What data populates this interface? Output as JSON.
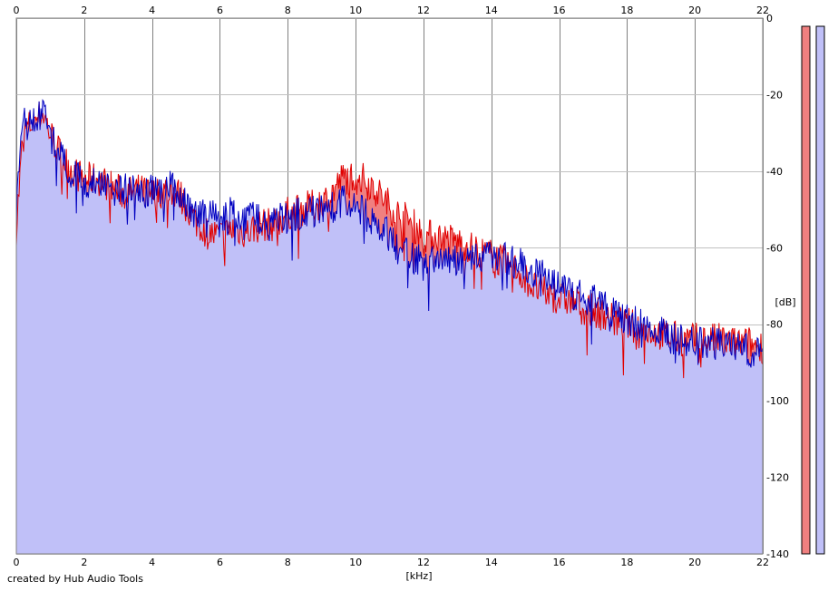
{
  "chart_data": {
    "type": "area",
    "xlabel": "[kHz]",
    "ylabel": "[dB]",
    "xlim": [
      0,
      22
    ],
    "ylim": [
      -140,
      0
    ],
    "x_ticks": [
      0,
      2,
      4,
      6,
      8,
      10,
      12,
      14,
      16,
      18,
      20,
      22
    ],
    "y_ticks": [
      0,
      -20,
      -40,
      -60,
      -80,
      -100,
      -120,
      -140
    ],
    "grid": true,
    "legend": "right-side channel bars",
    "series": [
      {
        "color": "#e00000",
        "fill": "#f08080",
        "x": [
          0,
          0.2,
          0.4,
          0.6,
          0.8,
          1.0,
          1.2,
          1.4,
          1.6,
          1.8,
          2.0,
          2.4,
          2.8,
          3.2,
          3.6,
          4.0,
          4.4,
          4.8,
          5.2,
          5.6,
          6.0,
          6.4,
          6.8,
          7.2,
          7.6,
          8.0,
          8.4,
          8.8,
          9.2,
          9.6,
          10.0,
          10.4,
          10.8,
          11.2,
          11.6,
          12.0,
          12.4,
          12.8,
          13.2,
          13.6,
          14.0,
          14.4,
          14.8,
          15.2,
          15.6,
          16.0,
          16.4,
          16.8,
          17.2,
          17.6,
          18.0,
          18.4,
          18.8,
          19.2,
          19.6,
          20.0,
          20.4,
          20.8,
          21.2,
          21.6,
          22.0
        ],
        "y": [
          -55,
          -30,
          -28,
          -26,
          -25,
          -30,
          -34,
          -37,
          -39,
          -41,
          -42,
          -42,
          -44,
          -46,
          -45,
          -46,
          -45,
          -46,
          -52,
          -56,
          -57,
          -55,
          -56,
          -54,
          -54,
          -51,
          -50,
          -49,
          -47,
          -42,
          -41,
          -43,
          -47,
          -51,
          -53,
          -57,
          -57,
          -58,
          -59,
          -61,
          -62,
          -64,
          -66,
          -70,
          -72,
          -73,
          -74,
          -76,
          -77,
          -79,
          -80,
          -81,
          -82,
          -83,
          -84,
          -84,
          -84,
          -84,
          -85,
          -85,
          -86
        ]
      },
      {
        "color": "#0000c0",
        "fill": "#c0c0f8",
        "x": [
          0,
          0.2,
          0.4,
          0.6,
          0.8,
          1.0,
          1.2,
          1.4,
          1.6,
          1.8,
          2.0,
          2.4,
          2.8,
          3.2,
          3.6,
          4.0,
          4.4,
          4.8,
          5.2,
          5.6,
          6.0,
          6.4,
          6.8,
          7.2,
          7.6,
          8.0,
          8.4,
          8.8,
          9.2,
          9.6,
          10.0,
          10.4,
          10.8,
          11.2,
          11.6,
          12.0,
          12.4,
          12.8,
          13.2,
          13.6,
          14.0,
          14.4,
          14.8,
          15.2,
          15.6,
          16.0,
          16.4,
          16.8,
          17.2,
          17.6,
          18.0,
          18.4,
          18.8,
          19.2,
          19.6,
          20.0,
          20.4,
          20.8,
          21.2,
          21.6,
          22.0
        ],
        "y": [
          -50,
          -28,
          -27,
          -27,
          -24,
          -30,
          -35,
          -38,
          -40,
          -42,
          -43,
          -43,
          -43,
          -45,
          -45,
          -45,
          -44,
          -45,
          -50,
          -52,
          -52,
          -51,
          -52,
          -52,
          -53,
          -52,
          -51,
          -50,
          -50,
          -48,
          -49,
          -52,
          -55,
          -60,
          -62,
          -64,
          -63,
          -64,
          -63,
          -63,
          -61,
          -63,
          -64,
          -66,
          -68,
          -70,
          -72,
          -73,
          -75,
          -77,
          -79,
          -80,
          -81,
          -83,
          -84,
          -84,
          -85,
          -85,
          -86,
          -87,
          -88
        ]
      }
    ]
  }
}
